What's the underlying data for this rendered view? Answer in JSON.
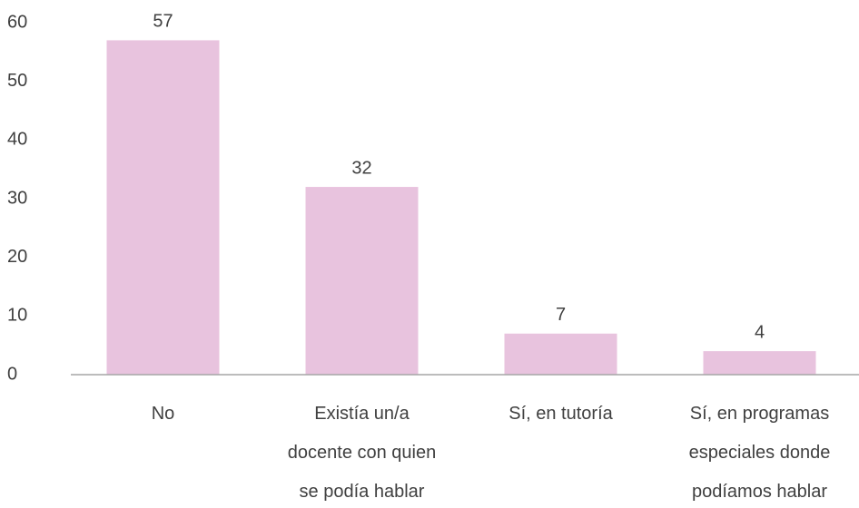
{
  "chart_data": {
    "type": "bar",
    "categories": [
      "No",
      "Existía un/a\ndocente con quien\nse podía hablar",
      "Sí, en tutoría",
      "Sí, en programas\nespeciales donde\npodíamos hablar"
    ],
    "values": [
      57,
      32,
      7,
      4
    ],
    "color": "#e8c3de",
    "ylim": [
      0,
      60
    ],
    "yticks": [
      0,
      10,
      20,
      30,
      40,
      50,
      60
    ],
    "grid": false,
    "data_labels": true
  }
}
